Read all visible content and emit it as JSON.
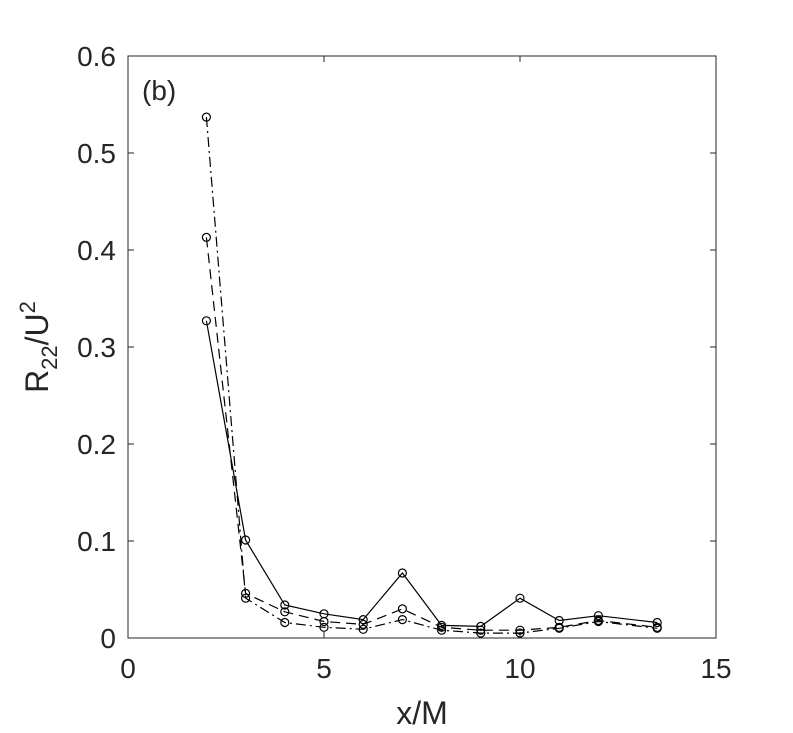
{
  "chart_data": {
    "type": "line",
    "panel_label": "(b)",
    "xlabel": "x/M",
    "ylabel": {
      "base": "R",
      "sub": "22",
      "mid": "/U",
      "sup": "2"
    },
    "xlim": [
      0,
      15
    ],
    "ylim": [
      0,
      0.6
    ],
    "xticks": [
      0,
      5,
      10,
      15
    ],
    "yticks": [
      0,
      0.1,
      0.2,
      0.3,
      0.4,
      0.5,
      0.6
    ],
    "xtick_labels": [
      "0",
      "5",
      "10",
      "15"
    ],
    "ytick_labels": [
      "0",
      "0.1",
      "0.2",
      "0.3",
      "0.4",
      "0.5",
      "0.6"
    ],
    "grid": false,
    "colors": {
      "line": "#000000",
      "axis": "#262626"
    },
    "x": [
      2,
      3,
      4,
      5,
      6,
      7,
      8,
      9,
      10,
      11,
      12,
      13.5
    ],
    "series": [
      {
        "style": "solid",
        "marker": "circle",
        "values": [
          0.327,
          0.101,
          0.034,
          0.025,
          0.019,
          0.067,
          0.013,
          0.012,
          0.041,
          0.018,
          0.023,
          0.016
        ]
      },
      {
        "style": "dashed",
        "marker": "circle",
        "values": [
          0.413,
          0.046,
          0.027,
          0.017,
          0.014,
          0.03,
          0.011,
          0.008,
          0.008,
          0.011,
          0.018,
          0.011
        ]
      },
      {
        "style": "dashdot",
        "marker": "circle",
        "values": [
          0.537,
          0.041,
          0.016,
          0.011,
          0.009,
          0.019,
          0.008,
          0.005,
          0.005,
          0.01,
          0.017,
          0.01
        ]
      }
    ]
  }
}
